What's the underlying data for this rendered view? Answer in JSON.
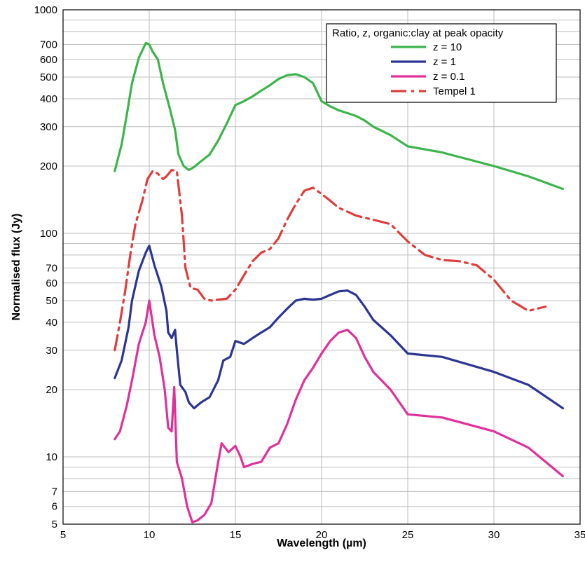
{
  "chart_data": {
    "type": "line",
    "xlabel": "Wavelength (µm)",
    "ylabel": "Normalised flux (Jy)",
    "xlim": [
      5,
      35
    ],
    "ylim": [
      5,
      1000
    ],
    "yscale": "log",
    "grid": true,
    "x_ticks": [
      5,
      10,
      15,
      20,
      25,
      30,
      35
    ],
    "y_ticks": [
      5,
      6,
      7,
      10,
      20,
      30,
      40,
      50,
      60,
      70,
      100,
      200,
      300,
      400,
      500,
      600,
      700,
      1000
    ],
    "y_grid": [
      5,
      6,
      7,
      8,
      9,
      10,
      20,
      30,
      40,
      50,
      60,
      70,
      80,
      90,
      100,
      200,
      300,
      400,
      500,
      600,
      700,
      800,
      900,
      1000
    ],
    "legend": {
      "title": "Ratio, z, organic:clay at peak opacity",
      "placement": "top-right"
    },
    "series": [
      {
        "name": "z = 10",
        "color": "#3cb44b",
        "dash": "solid",
        "points": [
          [
            8.0,
            190
          ],
          [
            8.4,
            250
          ],
          [
            8.7,
            340
          ],
          [
            9.0,
            470
          ],
          [
            9.4,
            610
          ],
          [
            9.8,
            710
          ],
          [
            10.0,
            700
          ],
          [
            10.2,
            650
          ],
          [
            10.5,
            600
          ],
          [
            10.8,
            470
          ],
          [
            11.2,
            360
          ],
          [
            11.5,
            290
          ],
          [
            11.7,
            225
          ],
          [
            12.0,
            200
          ],
          [
            12.3,
            192
          ],
          [
            12.6,
            198
          ],
          [
            13.0,
            210
          ],
          [
            13.5,
            225
          ],
          [
            14.0,
            260
          ],
          [
            14.5,
            310
          ],
          [
            15.0,
            375
          ],
          [
            15.5,
            390
          ],
          [
            16.0,
            410
          ],
          [
            16.5,
            435
          ],
          [
            17.0,
            460
          ],
          [
            17.5,
            490
          ],
          [
            18.0,
            510
          ],
          [
            18.5,
            515
          ],
          [
            19.0,
            500
          ],
          [
            19.5,
            470
          ],
          [
            20.0,
            390
          ],
          [
            20.5,
            370
          ],
          [
            21.0,
            355
          ],
          [
            21.5,
            345
          ],
          [
            22.0,
            335
          ],
          [
            22.5,
            320
          ],
          [
            23.0,
            300
          ],
          [
            24.0,
            275
          ],
          [
            25.0,
            245
          ],
          [
            27.0,
            230
          ],
          [
            30.0,
            200
          ],
          [
            32.0,
            180
          ],
          [
            34.0,
            158
          ]
        ]
      },
      {
        "name": "z = 1",
        "color": "#2c3592",
        "dash": "solid",
        "points": [
          [
            8.0,
            22.5
          ],
          [
            8.4,
            27
          ],
          [
            8.8,
            38
          ],
          [
            9.0,
            50
          ],
          [
            9.4,
            68
          ],
          [
            9.8,
            82
          ],
          [
            10.0,
            88
          ],
          [
            10.3,
            72
          ],
          [
            10.7,
            58
          ],
          [
            11.0,
            45
          ],
          [
            11.1,
            36
          ],
          [
            11.3,
            34
          ],
          [
            11.5,
            37
          ],
          [
            11.6,
            30
          ],
          [
            11.8,
            21
          ],
          [
            12.1,
            19.5
          ],
          [
            12.3,
            17.5
          ],
          [
            12.6,
            16.5
          ],
          [
            13.0,
            17.5
          ],
          [
            13.5,
            18.5
          ],
          [
            14.0,
            22
          ],
          [
            14.3,
            27
          ],
          [
            14.7,
            28
          ],
          [
            15.0,
            33
          ],
          [
            15.5,
            32
          ],
          [
            16.0,
            34
          ],
          [
            16.5,
            36
          ],
          [
            17.0,
            38
          ],
          [
            17.5,
            42
          ],
          [
            18.0,
            46
          ],
          [
            18.5,
            50
          ],
          [
            19.0,
            51
          ],
          [
            19.5,
            50.5
          ],
          [
            20.0,
            51
          ],
          [
            20.5,
            53
          ],
          [
            21.0,
            55
          ],
          [
            21.5,
            55.5
          ],
          [
            22.0,
            53
          ],
          [
            22.5,
            47
          ],
          [
            23.0,
            41
          ],
          [
            24.0,
            35
          ],
          [
            25.0,
            29
          ],
          [
            27.0,
            28
          ],
          [
            30.0,
            24
          ],
          [
            32.0,
            21
          ],
          [
            34.0,
            16.5
          ]
        ]
      },
      {
        "name": "z = 0.1",
        "color": "#e0309a",
        "dash": "solid",
        "points": [
          [
            8.0,
            12
          ],
          [
            8.3,
            13
          ],
          [
            8.7,
            17
          ],
          [
            9.0,
            22
          ],
          [
            9.4,
            32
          ],
          [
            9.8,
            40
          ],
          [
            10.0,
            50
          ],
          [
            10.3,
            35
          ],
          [
            10.6,
            28
          ],
          [
            10.9,
            20
          ],
          [
            11.1,
            13.5
          ],
          [
            11.3,
            13
          ],
          [
            11.45,
            20.5
          ],
          [
            11.6,
            9.5
          ],
          [
            11.9,
            8
          ],
          [
            12.2,
            6
          ],
          [
            12.5,
            5.1
          ],
          [
            12.8,
            5.2
          ],
          [
            13.2,
            5.5
          ],
          [
            13.6,
            6.2
          ],
          [
            14.0,
            9.5
          ],
          [
            14.2,
            11.5
          ],
          [
            14.6,
            10.5
          ],
          [
            15.0,
            11.2
          ],
          [
            15.3,
            10
          ],
          [
            15.5,
            9
          ],
          [
            16.0,
            9.3
          ],
          [
            16.5,
            9.5
          ],
          [
            17.0,
            11
          ],
          [
            17.5,
            11.5
          ],
          [
            18.0,
            14
          ],
          [
            18.5,
            18
          ],
          [
            19.0,
            22
          ],
          [
            19.5,
            25
          ],
          [
            20.0,
            29
          ],
          [
            20.5,
            33
          ],
          [
            21.0,
            36
          ],
          [
            21.5,
            37
          ],
          [
            22.0,
            34
          ],
          [
            22.5,
            28
          ],
          [
            23.0,
            24
          ],
          [
            24.0,
            20
          ],
          [
            25.0,
            15.5
          ],
          [
            27.0,
            15
          ],
          [
            30.0,
            13
          ],
          [
            32.0,
            11
          ],
          [
            34.0,
            8.2
          ]
        ]
      },
      {
        "name": "Tempel 1",
        "color": "#e03c3c",
        "dash": "dashdot",
        "points": [
          [
            8.0,
            30
          ],
          [
            8.3,
            40
          ],
          [
            8.6,
            55
          ],
          [
            8.9,
            80
          ],
          [
            9.2,
            110
          ],
          [
            9.6,
            140
          ],
          [
            9.9,
            175
          ],
          [
            10.2,
            190
          ],
          [
            10.5,
            185
          ],
          [
            10.8,
            175
          ],
          [
            11.0,
            180
          ],
          [
            11.3,
            192
          ],
          [
            11.6,
            190
          ],
          [
            11.9,
            120
          ],
          [
            12.1,
            70
          ],
          [
            12.4,
            57
          ],
          [
            12.8,
            56
          ],
          [
            13.2,
            51
          ],
          [
            13.6,
            50
          ],
          [
            14.0,
            50.5
          ],
          [
            14.5,
            51
          ],
          [
            15.0,
            56
          ],
          [
            15.5,
            65
          ],
          [
            16.0,
            75
          ],
          [
            16.5,
            82
          ],
          [
            17.0,
            85
          ],
          [
            17.5,
            95
          ],
          [
            18.0,
            115
          ],
          [
            18.5,
            135
          ],
          [
            19.0,
            155
          ],
          [
            19.5,
            160
          ],
          [
            20.0,
            150
          ],
          [
            20.5,
            140
          ],
          [
            21.0,
            130
          ],
          [
            21.5,
            125
          ],
          [
            22.0,
            120
          ],
          [
            23.0,
            115
          ],
          [
            24.0,
            110
          ],
          [
            25.0,
            92
          ],
          [
            26.0,
            80
          ],
          [
            27.0,
            76
          ],
          [
            28.0,
            75
          ],
          [
            29.0,
            72
          ],
          [
            30.0,
            62
          ],
          [
            31.0,
            50
          ],
          [
            32.0,
            45
          ],
          [
            33.0,
            47
          ]
        ]
      }
    ]
  }
}
